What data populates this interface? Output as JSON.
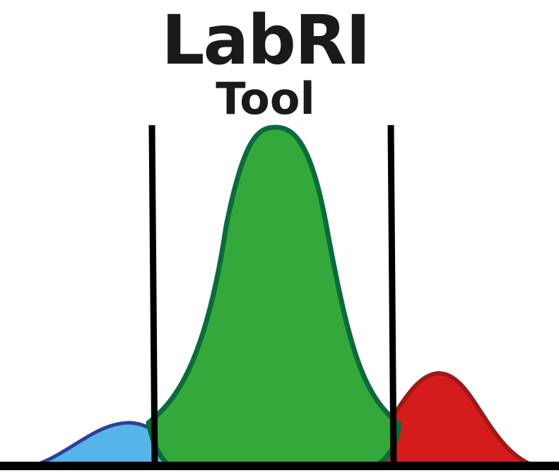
{
  "logo": {
    "title": "LabRI",
    "subtitle": "Tool",
    "colors": {
      "left_curve_fill": "#56b4e9",
      "left_curve_stroke": "#2e3f95",
      "center_curve_fill": "#35a83c",
      "center_curve_stroke": "#0b6b3a",
      "right_curve_fill": "#d41c1c",
      "right_curve_stroke": "#a01818",
      "lines": "#000000"
    }
  }
}
